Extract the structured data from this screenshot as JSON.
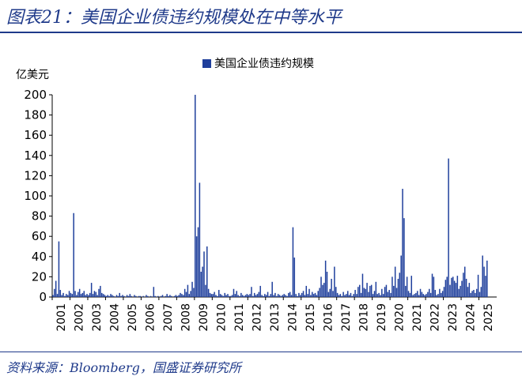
{
  "page": {
    "title": "图表21：美国企业债违约规模处在中等水平",
    "source": "资料来源：Bloomberg，国盛证券研究所"
  },
  "colors": {
    "bar": "#1f3f9c",
    "accent": "#1f3a8a",
    "axis": "#000000"
  },
  "chart_data": {
    "type": "bar",
    "ylabel": "亿美元",
    "ylim": [
      0,
      200
    ],
    "yticks": [
      0,
      20,
      40,
      60,
      80,
      100,
      120,
      140,
      160,
      180,
      200
    ],
    "x_tick_labels": [
      "2001",
      "2002",
      "2003",
      "2004",
      "2005",
      "2006",
      "2007",
      "2008",
      "2009",
      "2010",
      "2011",
      "2012",
      "2013",
      "2014",
      "2015",
      "2016",
      "2017",
      "2018",
      "2019",
      "2020",
      "2021",
      "2022",
      "2023",
      "2024",
      "2025"
    ],
    "legend": "top",
    "series": [
      {
        "name": "美国企业债违约规模",
        "period": "monthly",
        "start": "2001-01",
        "values": [
          2,
          8,
          16,
          3,
          55,
          7,
          2,
          4,
          1,
          3,
          2,
          6,
          4,
          3,
          83,
          6,
          2,
          5,
          8,
          3,
          4,
          6,
          2,
          3,
          2,
          4,
          14,
          3,
          6,
          5,
          2,
          8,
          11,
          4,
          3,
          2,
          1,
          2,
          1,
          3,
          2,
          1,
          0,
          2,
          1,
          4,
          1,
          2,
          1,
          0,
          2,
          1,
          3,
          1,
          0,
          2,
          1,
          0,
          1,
          1,
          0,
          1,
          0,
          2,
          1,
          0,
          1,
          0,
          10,
          1,
          0,
          1,
          0,
          1,
          2,
          0,
          1,
          3,
          1,
          2,
          1,
          0,
          1,
          2,
          1,
          2,
          4,
          3,
          2,
          8,
          5,
          12,
          3,
          6,
          15,
          9,
          200,
          60,
          69,
          113,
          25,
          30,
          45,
          12,
          50,
          8,
          4,
          3,
          3,
          5,
          2,
          1,
          7,
          3,
          2,
          1,
          4,
          2,
          3,
          1,
          1,
          2,
          8,
          3,
          6,
          2,
          1,
          4,
          2,
          1,
          2,
          3,
          2,
          3,
          10,
          1,
          4,
          2,
          3,
          5,
          11,
          2,
          1,
          3,
          2,
          5,
          1,
          3,
          15,
          2,
          4,
          1,
          3,
          2,
          1,
          2,
          3,
          2,
          1,
          4,
          5,
          2,
          69,
          39,
          3,
          1,
          4,
          2,
          4,
          6,
          2,
          11,
          3,
          8,
          2,
          5,
          3,
          4,
          2,
          6,
          9,
          20,
          12,
          14,
          36,
          25,
          5,
          8,
          18,
          6,
          30,
          10,
          4,
          2,
          3,
          1,
          5,
          2,
          3,
          6,
          2,
          4,
          1,
          3,
          7,
          3,
          10,
          12,
          4,
          23,
          9,
          8,
          14,
          5,
          11,
          12,
          3,
          6,
          15,
          3,
          4,
          2,
          8,
          3,
          10,
          12,
          5,
          7,
          4,
          20,
          11,
          30,
          9,
          18,
          24,
          41,
          107,
          78,
          11,
          20,
          6,
          4,
          21,
          2,
          3,
          4,
          6,
          2,
          8,
          5,
          3,
          2,
          3,
          5,
          8,
          4,
          23,
          20,
          7,
          2,
          3,
          8,
          4,
          6,
          10,
          17,
          20,
          137,
          12,
          19,
          20,
          16,
          14,
          21,
          8,
          11,
          16,
          24,
          30,
          18,
          10,
          14,
          4,
          6,
          7,
          4,
          8,
          22,
          5,
          10,
          41,
          30,
          21,
          36
        ]
      }
    ]
  }
}
